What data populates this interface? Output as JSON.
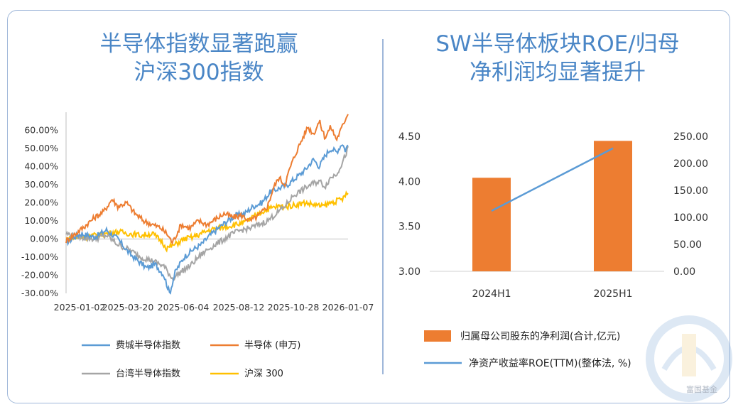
{
  "left": {
    "title_line1": "半导体指数显著跑赢",
    "title_line2": "沪深300指数"
  },
  "right": {
    "title_line1": "SW半导体板块ROE/归母",
    "title_line2": "净利润均显著提升"
  },
  "watermark": "富国基金",
  "colors": {
    "blue": "#5b9bd5",
    "orange": "#ed7d31",
    "gray": "#a5a5a5",
    "yellow": "#ffc000",
    "title": "#4a86c6"
  },
  "chart_data": [
    {
      "type": "line",
      "yticks": [
        "60.00%",
        "50.00%",
        "40.00%",
        "30.00%",
        "20.00%",
        "10.00%",
        "0.00%",
        "-10.00%",
        "-20.00%",
        "-30.00%"
      ],
      "xticks": [
        "2025-01-02",
        "2025-03-20",
        "2025-06-04",
        "2025-08-12",
        "2025-10-28",
        "2026-01-07"
      ],
      "ylim": [
        -30,
        70
      ],
      "series": [
        {
          "name": "费城半导体指数",
          "color": "#5b9bd5",
          "keypoints": [
            [
              0,
              -2
            ],
            [
              5,
              3
            ],
            [
              10,
              1
            ],
            [
              14,
              5
            ],
            [
              18,
              0
            ],
            [
              22,
              -8
            ],
            [
              25,
              -12
            ],
            [
              28,
              -16
            ],
            [
              31,
              -14
            ],
            [
              34,
              -20
            ],
            [
              36,
              -30
            ],
            [
              38,
              -18
            ],
            [
              41,
              -10
            ],
            [
              44,
              -6
            ],
            [
              47,
              -3
            ],
            [
              50,
              2
            ],
            [
              53,
              6
            ],
            [
              56,
              10
            ],
            [
              59,
              13
            ],
            [
              62,
              14
            ],
            [
              65,
              18
            ],
            [
              68,
              20
            ],
            [
              71,
              26
            ],
            [
              74,
              28
            ],
            [
              77,
              30
            ],
            [
              80,
              34
            ],
            [
              83,
              38
            ],
            [
              86,
              44
            ],
            [
              88,
              40
            ],
            [
              90,
              46
            ],
            [
              92,
              50
            ],
            [
              94,
              48
            ],
            [
              96,
              53
            ],
            [
              97,
              49
            ],
            [
              98,
              52
            ]
          ]
        },
        {
          "name": "半导体 (申万)",
          "color": "#ed7d31",
          "keypoints": [
            [
              0,
              -1
            ],
            [
              5,
              5
            ],
            [
              10,
              12
            ],
            [
              13,
              15
            ],
            [
              16,
              22
            ],
            [
              18,
              18
            ],
            [
              21,
              20
            ],
            [
              24,
              14
            ],
            [
              27,
              10
            ],
            [
              30,
              8
            ],
            [
              33,
              6
            ],
            [
              35,
              3
            ],
            [
              37,
              -2
            ],
            [
              40,
              8
            ],
            [
              43,
              6
            ],
            [
              46,
              10
            ],
            [
              49,
              8
            ],
            [
              52,
              11
            ],
            [
              55,
              14
            ],
            [
              58,
              12
            ],
            [
              61,
              13
            ],
            [
              64,
              10
            ],
            [
              67,
              13
            ],
            [
              70,
              18
            ],
            [
              72,
              28
            ],
            [
              74,
              34
            ],
            [
              76,
              30
            ],
            [
              78,
              40
            ],
            [
              80,
              48
            ],
            [
              82,
              55
            ],
            [
              84,
              62
            ],
            [
              86,
              58
            ],
            [
              88,
              65
            ],
            [
              90,
              56
            ],
            [
              92,
              62
            ],
            [
              94,
              55
            ],
            [
              96,
              62
            ],
            [
              98,
              70
            ]
          ]
        },
        {
          "name": "台湾半导体指数",
          "color": "#a5a5a5",
          "keypoints": [
            [
              0,
              3
            ],
            [
              5,
              1
            ],
            [
              10,
              0
            ],
            [
              14,
              2
            ],
            [
              18,
              -3
            ],
            [
              22,
              -6
            ],
            [
              26,
              -10
            ],
            [
              30,
              -12
            ],
            [
              34,
              -15
            ],
            [
              37,
              -22
            ],
            [
              40,
              -18
            ],
            [
              43,
              -15
            ],
            [
              46,
              -10
            ],
            [
              49,
              -6
            ],
            [
              52,
              -3
            ],
            [
              55,
              0
            ],
            [
              58,
              3
            ],
            [
              61,
              5
            ],
            [
              64,
              6
            ],
            [
              67,
              8
            ],
            [
              70,
              10
            ],
            [
              73,
              14
            ],
            [
              76,
              18
            ],
            [
              79,
              24
            ],
            [
              82,
              27
            ],
            [
              85,
              30
            ],
            [
              88,
              32
            ],
            [
              90,
              29
            ],
            [
              92,
              34
            ],
            [
              94,
              36
            ],
            [
              96,
              42
            ],
            [
              98,
              50
            ]
          ]
        },
        {
          "name": "沪深 300",
          "color": "#ffc000",
          "keypoints": [
            [
              0,
              0
            ],
            [
              5,
              1
            ],
            [
              10,
              2
            ],
            [
              14,
              3
            ],
            [
              18,
              4
            ],
            [
              22,
              3
            ],
            [
              26,
              2
            ],
            [
              30,
              3
            ],
            [
              33,
              -1
            ],
            [
              35,
              -5
            ],
            [
              38,
              -3
            ],
            [
              41,
              0
            ],
            [
              44,
              1
            ],
            [
              47,
              3
            ],
            [
              50,
              5
            ],
            [
              53,
              6
            ],
            [
              56,
              7
            ],
            [
              59,
              8
            ],
            [
              62,
              9
            ],
            [
              65,
              12
            ],
            [
              68,
              15
            ],
            [
              71,
              17
            ],
            [
              74,
              18
            ],
            [
              77,
              18
            ],
            [
              80,
              19
            ],
            [
              83,
              20
            ],
            [
              86,
              19
            ],
            [
              89,
              18
            ],
            [
              92,
              20
            ],
            [
              94,
              21
            ],
            [
              96,
              22
            ],
            [
              97,
              24
            ],
            [
              98,
              25
            ]
          ]
        }
      ]
    },
    {
      "type": "bar",
      "categories": [
        "2024H1",
        "2025H1"
      ],
      "ylim_left": [
        3.0,
        4.5
      ],
      "yticks_left": [
        "4.50",
        "4.00",
        "3.50",
        "3.00"
      ],
      "ylim_right": [
        0,
        250
      ],
      "yticks_right": [
        "250.00",
        "200.00",
        "150.00",
        "100.00",
        "50.00",
        "0.00"
      ],
      "series": [
        {
          "name": "归属母公司股东的净利润(合计,亿元)",
          "type": "bar",
          "color": "#ed7d31",
          "axis": "left",
          "values": [
            4.04,
            4.45
          ]
        },
        {
          "name": "净资产收益率ROE(TTM)(整体法, %)",
          "type": "line",
          "color": "#5b9bd5",
          "axis": "right",
          "values": [
            112,
            228
          ]
        }
      ]
    }
  ]
}
